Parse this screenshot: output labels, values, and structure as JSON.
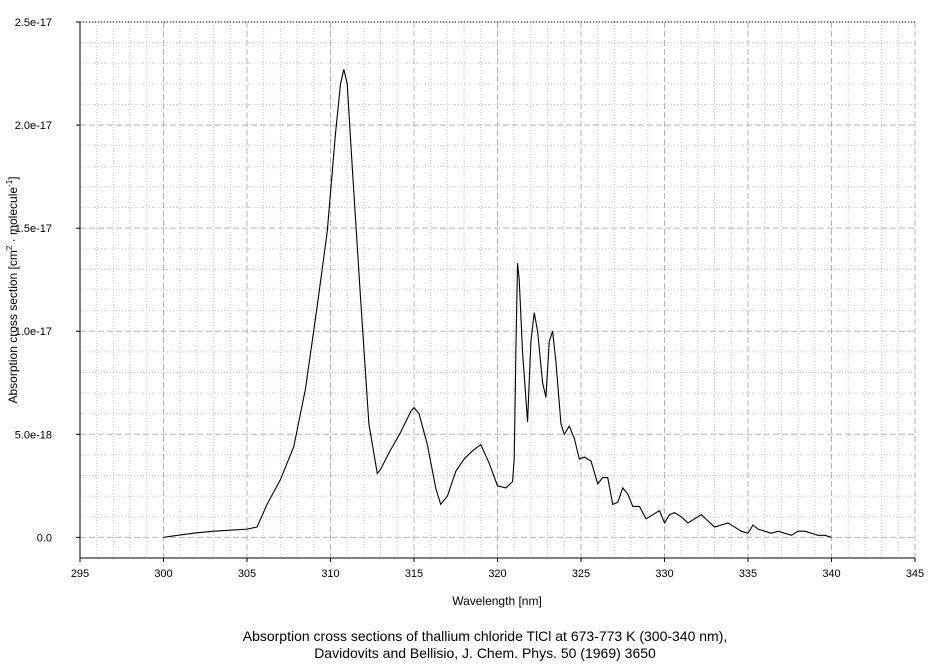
{
  "chart_data": {
    "type": "line",
    "xlabel": "Wavelength [nm]",
    "ylabel_parts": [
      "Absorption cross section [cm",
      "2",
      " · molecule",
      "-1",
      "]"
    ],
    "xlim": [
      295,
      345
    ],
    "ylim": [
      -1e-18,
      2.5e-17
    ],
    "x_ticks": [
      295,
      300,
      305,
      310,
      315,
      320,
      325,
      330,
      335,
      340,
      345
    ],
    "y_ticks": [
      0,
      5e-18,
      1e-17,
      1.5e-17,
      2e-17,
      2.5e-17
    ],
    "y_tick_labels": [
      "0.0",
      "5.0e-18",
      "1.0e-17",
      "1.5e-17",
      "2.0e-17",
      "2.5e-17"
    ],
    "grid": true,
    "line_color": "#000000",
    "series": [
      {
        "x": [
          300,
          301,
          302,
          303,
          304,
          305,
          305.6,
          306.2,
          307,
          307.8,
          308.5,
          309.2,
          309.8,
          310.3,
          310.6,
          310.8,
          311.0,
          311.3,
          311.8,
          312.3,
          312.8,
          313.0,
          313.5,
          314.2,
          314.8,
          315.0,
          315.3,
          315.8,
          316.3,
          316.6,
          317.0,
          317.5,
          318.0,
          318.5,
          319.0,
          319.5,
          320.0,
          320.5,
          320.9,
          321.0,
          321.1,
          321.2,
          321.3,
          321.5,
          321.8,
          322.0,
          322.2,
          322.4,
          322.7,
          322.9,
          323.1,
          323.3,
          323.5,
          323.8,
          324.0,
          324.3,
          324.6,
          324.9,
          325.2,
          325.6,
          326.0,
          326.3,
          326.6,
          326.9,
          327.2,
          327.5,
          327.8,
          328.1,
          328.5,
          328.9,
          329.3,
          329.7,
          330.0,
          330.3,
          330.6,
          331.0,
          331.4,
          331.8,
          332.2,
          332.6,
          333.0,
          333.4,
          333.8,
          334.2,
          334.6,
          335.0,
          335.3,
          335.6,
          336.0,
          336.4,
          336.8,
          337.2,
          337.6,
          338.0,
          338.4,
          338.8,
          339.2,
          339.6,
          340.0
        ],
        "y": [
          0,
          1.2e-19,
          2.2e-19,
          3e-19,
          3.5e-19,
          4e-19,
          5e-19,
          1.6e-18,
          2.8e-18,
          4.4e-18,
          7.2e-18,
          1.12e-17,
          1.48e-17,
          1.96e-17,
          2.2e-17,
          2.27e-17,
          2.2e-17,
          1.8e-17,
          1.16e-17,
          5.5e-18,
          3.1e-18,
          3.3e-18,
          4.1e-18,
          5.1e-18,
          6.1e-18,
          6.3e-18,
          6e-18,
          4.5e-18,
          2.4e-18,
          1.6e-18,
          2e-18,
          3.2e-18,
          3.8e-18,
          4.2e-18,
          4.5e-18,
          3.6e-18,
          2.5e-18,
          2.4e-18,
          2.7e-18,
          3.8e-18,
          9e-18,
          1.33e-17,
          1.25e-17,
          9e-18,
          5.6e-18,
          9.5e-18,
          1.09e-17,
          1e-17,
          7.5e-18,
          6.8e-18,
          9.5e-18,
          1e-17,
          8.5e-18,
          5.5e-18,
          5e-18,
          5.4e-18,
          4.8e-18,
          3.8e-18,
          3.9e-18,
          3.7e-18,
          2.6e-18,
          2.9e-18,
          2.9e-18,
          1.6e-18,
          1.7e-18,
          2.4e-18,
          2.1e-18,
          1.5e-18,
          1.5e-18,
          9e-19,
          1.1e-18,
          1.3e-18,
          7e-19,
          1.1e-18,
          1.2e-18,
          1e-18,
          7e-19,
          9e-19,
          1.1e-18,
          8e-19,
          5e-19,
          6e-19,
          7e-19,
          5e-19,
          3e-19,
          2e-19,
          6e-19,
          4e-19,
          3e-19,
          2e-19,
          3e-19,
          2e-19,
          1e-19,
          3e-19,
          3e-19,
          2e-19,
          1e-19,
          1e-19,
          0
        ]
      }
    ]
  },
  "caption": {
    "line1": "Absorption cross sections of thallium chloride TlCl at 673-773 K (300-340 nm),",
    "line2": "Davidovits and Bellisio, J. Chem. Phys. 50 (1969) 3650"
  }
}
